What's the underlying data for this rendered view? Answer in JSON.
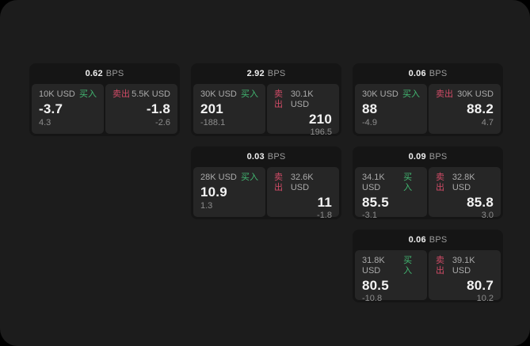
{
  "labels": {
    "bps_unit": "BPS",
    "buy": "买入",
    "sell": "卖出"
  },
  "colors": {
    "canvas": "#000000",
    "surface": "#1c1c1c",
    "card_bg": "#151515",
    "panel_bg": "#262626",
    "buy_green": "#42b872",
    "sell_red": "#d14b67"
  },
  "cards": [
    {
      "bps": "0.62",
      "buy": {
        "amount": "10K USD",
        "price": "-3.7",
        "delta": "4.3"
      },
      "sell": {
        "amount": "5.5K USD",
        "price": "-1.8",
        "delta": "-2.6"
      }
    },
    {
      "bps": "2.92",
      "buy": {
        "amount": "30K USD",
        "price": "201",
        "delta": "-188.1"
      },
      "sell": {
        "amount": "30.1K USD",
        "price": "210",
        "delta": "196.5"
      }
    },
    {
      "bps": "0.06",
      "buy": {
        "amount": "30K USD",
        "price": "88",
        "delta": "-4.9"
      },
      "sell": {
        "amount": "30K USD",
        "price": "88.2",
        "delta": "4.7"
      }
    },
    {
      "bps": "0.03",
      "buy": {
        "amount": "28K USD",
        "price": "10.9",
        "delta": "1.3"
      },
      "sell": {
        "amount": "32.6K USD",
        "price": "11",
        "delta": "-1.8"
      }
    },
    {
      "bps": "0.09",
      "buy": {
        "amount": "34.1K USD",
        "price": "85.5",
        "delta": "-3.1"
      },
      "sell": {
        "amount": "32.8K USD",
        "price": "85.8",
        "delta": "3.0"
      }
    },
    {
      "bps": "0.06",
      "buy": {
        "amount": "31.8K USD",
        "price": "80.5",
        "delta": "-10.8"
      },
      "sell": {
        "amount": "39.1K USD",
        "price": "80.7",
        "delta": "10.2"
      }
    }
  ]
}
